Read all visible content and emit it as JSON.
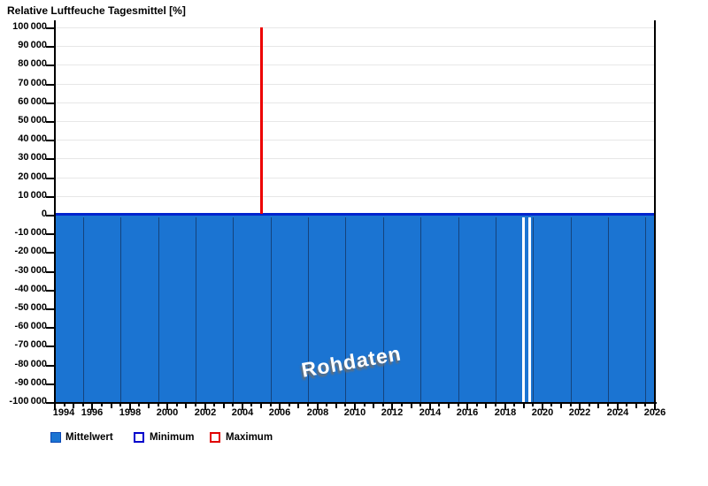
{
  "window": {
    "title": "Relative Luftfeuche Tagesmittel [%]"
  },
  "chart_data": {
    "type": "area",
    "title": "Relative Luftfeuche Tagesmittel [%]",
    "watermark": "Rohdaten",
    "grid": true,
    "legend_position": "bottom-left",
    "x_axis": {
      "min": 1994,
      "max": 2026,
      "major_tick_step": 2,
      "minor_tick_step": 0.5,
      "tick_labels": [
        "1994",
        "1996",
        "1998",
        "2000",
        "2002",
        "2004",
        "2006",
        "2008",
        "2010",
        "2012",
        "2014",
        "2016",
        "2018",
        "2020",
        "2022",
        "2024",
        "2026"
      ]
    },
    "y_axis": {
      "min": -100000,
      "max": 100000,
      "tick_step": 10000,
      "tick_labels": [
        "100 000",
        "90 000",
        "80 000",
        "70 000",
        "60 000",
        "50 000",
        "40 000",
        "30 000",
        "20 000",
        "10 000",
        "0",
        "-10 000",
        "-20 000",
        "-30 000",
        "-40 000",
        "-50 000",
        "-60 000",
        "-70 000",
        "-80 000",
        "-90 000",
        "-100 000"
      ]
    },
    "series": [
      {
        "name": "Mittelwert",
        "type": "area",
        "color": "#1B74D2",
        "edge_color": "#0224CE",
        "from_year": 1994,
        "to_year": 2026,
        "top_value": 0,
        "bottom_value": -100000,
        "note": "solid blue filled area spanning the whole x range from 0 down to -100000, with dark vertical bar separators about every 2 years"
      },
      {
        "name": "Minimum",
        "type": "bar",
        "color": "#FFFFFF",
        "edge_color": "#0000CC",
        "gap_years": [
          2018.98,
          2019.31
        ],
        "note": "visible only as two narrow white vertical stripes in the blue area near 2019"
      },
      {
        "name": "Maximum",
        "type": "line",
        "color": "#ED0000",
        "spike": {
          "year": 2005,
          "value": 100000
        },
        "note": "single red vertical spike at 2005 rising from 0 to 100000"
      }
    ],
    "separator_years": [
      1995.5,
      1997.5,
      1999.5,
      2001.5,
      2003.5,
      2005.5,
      2007.5,
      2009.5,
      2011.5,
      2013.5,
      2015.5,
      2017.5,
      2019.5,
      2021.5,
      2023.5,
      2025.5
    ]
  },
  "legend": {
    "items": [
      {
        "label": "Mittelwert",
        "swatch": "blue-filled"
      },
      {
        "label": "Minimum",
        "swatch": "white-blue-outline"
      },
      {
        "label": "Maximum",
        "swatch": "white-red-outline"
      }
    ]
  },
  "colors": {
    "area_fill": "#1B74D2",
    "area_top_line": "#0224CE",
    "bar_separator": "rgba(18,42,78,0.65)",
    "maximum_red": "#ED0000",
    "minimum_white": "#FFFFFF",
    "minimum_outline": "#0000CC",
    "gridline": "#e7e7e7",
    "axis": "#000000",
    "text": "#000000",
    "watermark_text": "#FFFFFF"
  }
}
